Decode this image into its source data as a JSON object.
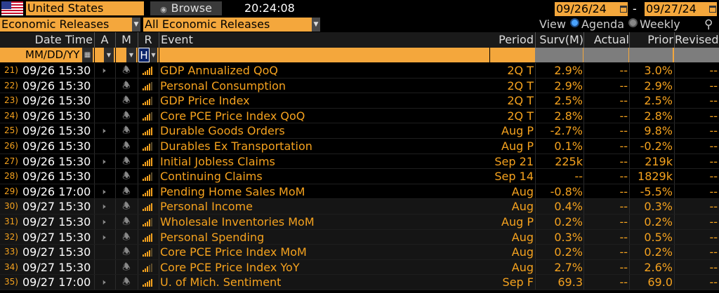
{
  "toolbar": {
    "country": "United States",
    "browse_label": "Browse",
    "time": "20:24:08",
    "start_date": "09/26/24",
    "end_date": "09/27/24",
    "date_separator": "-"
  },
  "filters": {
    "category": "Economic Releases",
    "subcategory": "All Economic Releases",
    "view_label": "View",
    "view_agenda": "Agenda",
    "view_weekly": "Weekly"
  },
  "columns": {
    "datetime": "Date Time",
    "a": "A",
    "m": "M",
    "r": "R",
    "event": "Event",
    "period": "Period",
    "surv": "Surv(M)",
    "actual": "Actual",
    "prior": "Prior",
    "revised": "Revised"
  },
  "filter_row": {
    "date_format": "MM/DD/YY",
    "r_value": "H"
  },
  "rows": [
    {
      "n": "21)",
      "dt": "09/26 15:30",
      "speaker": true,
      "sig": 5,
      "event": "GDP Annualized QoQ",
      "period": "2Q T",
      "surv": "2.9%",
      "actual": "--",
      "prior": "3.0%",
      "revised": "--"
    },
    {
      "n": "22)",
      "dt": "09/26 15:30",
      "speaker": false,
      "sig": 4,
      "event": "Personal Consumption",
      "period": "2Q T",
      "surv": "2.9%",
      "actual": "--",
      "prior": "2.9%",
      "revised": "--"
    },
    {
      "n": "23)",
      "dt": "09/26 15:30",
      "speaker": false,
      "sig": 4,
      "event": "GDP Price Index",
      "period": "2Q T",
      "surv": "2.5%",
      "actual": "--",
      "prior": "2.5%",
      "revised": "--"
    },
    {
      "n": "24)",
      "dt": "09/26 15:30",
      "speaker": false,
      "sig": 4,
      "event": "Core PCE Price Index QoQ",
      "period": "2Q T",
      "surv": "2.8%",
      "actual": "--",
      "prior": "2.8%",
      "revised": "--"
    },
    {
      "n": "25)",
      "dt": "09/26 15:30",
      "speaker": true,
      "sig": 5,
      "event": "Durable Goods Orders",
      "period": "Aug P",
      "surv": "-2.7%",
      "actual": "--",
      "prior": "9.8%",
      "revised": "--"
    },
    {
      "n": "26)",
      "dt": "09/26 15:30",
      "speaker": false,
      "sig": 4,
      "event": "Durables Ex Transportation",
      "period": "Aug P",
      "surv": "0.1%",
      "actual": "--",
      "prior": "-0.2%",
      "revised": "--"
    },
    {
      "n": "27)",
      "dt": "09/26 15:30",
      "speaker": true,
      "sig": 5,
      "event": "Initial Jobless Claims",
      "period": "Sep 21",
      "surv": "225k",
      "actual": "--",
      "prior": "219k",
      "revised": "--"
    },
    {
      "n": "28)",
      "dt": "09/26 15:30",
      "speaker": false,
      "sig": 4,
      "event": "Continuing Claims",
      "period": "Sep 14",
      "surv": "--",
      "actual": "--",
      "prior": "1829k",
      "revised": "--"
    },
    {
      "n": "29)",
      "dt": "09/26 17:00",
      "speaker": true,
      "sig": 5,
      "event": "Pending Home Sales MoM",
      "period": "Aug",
      "surv": "-0.8%",
      "actual": "--",
      "prior": "-5.5%",
      "revised": "--"
    },
    {
      "n": "30)",
      "dt": "09/27 15:30",
      "speaker": true,
      "sig": 5,
      "event": "Personal Income",
      "period": "Aug",
      "surv": "0.4%",
      "actual": "--",
      "prior": "0.3%",
      "revised": "--"
    },
    {
      "n": "31)",
      "dt": "09/27 15:30",
      "speaker": true,
      "sig": 4,
      "event": "Wholesale Inventories MoM",
      "period": "Aug P",
      "surv": "0.2%",
      "actual": "--",
      "prior": "0.2%",
      "revised": "--"
    },
    {
      "n": "32)",
      "dt": "09/27 15:30",
      "speaker": true,
      "sig": 5,
      "event": "Personal Spending",
      "period": "Aug",
      "surv": "0.3%",
      "actual": "--",
      "prior": "0.5%",
      "revised": "--"
    },
    {
      "n": "33)",
      "dt": "09/27 15:30",
      "speaker": false,
      "sig": 4,
      "event": "Core PCE Price Index MoM",
      "period": "Aug",
      "surv": "0.2%",
      "actual": "--",
      "prior": "0.2%",
      "revised": "--"
    },
    {
      "n": "34)",
      "dt": "09/27 15:30",
      "speaker": false,
      "sig": 3,
      "event": "Core PCE Price Index YoY",
      "period": "Aug",
      "surv": "2.7%",
      "actual": "--",
      "prior": "2.6%",
      "revised": "--"
    },
    {
      "n": "35)",
      "dt": "09/27 17:00",
      "speaker": true,
      "sig": 5,
      "event": "U. of Mich. Sentiment",
      "period": "Sep F",
      "surv": "69.3",
      "actual": "--",
      "prior": "69.0",
      "revised": "--"
    }
  ]
}
